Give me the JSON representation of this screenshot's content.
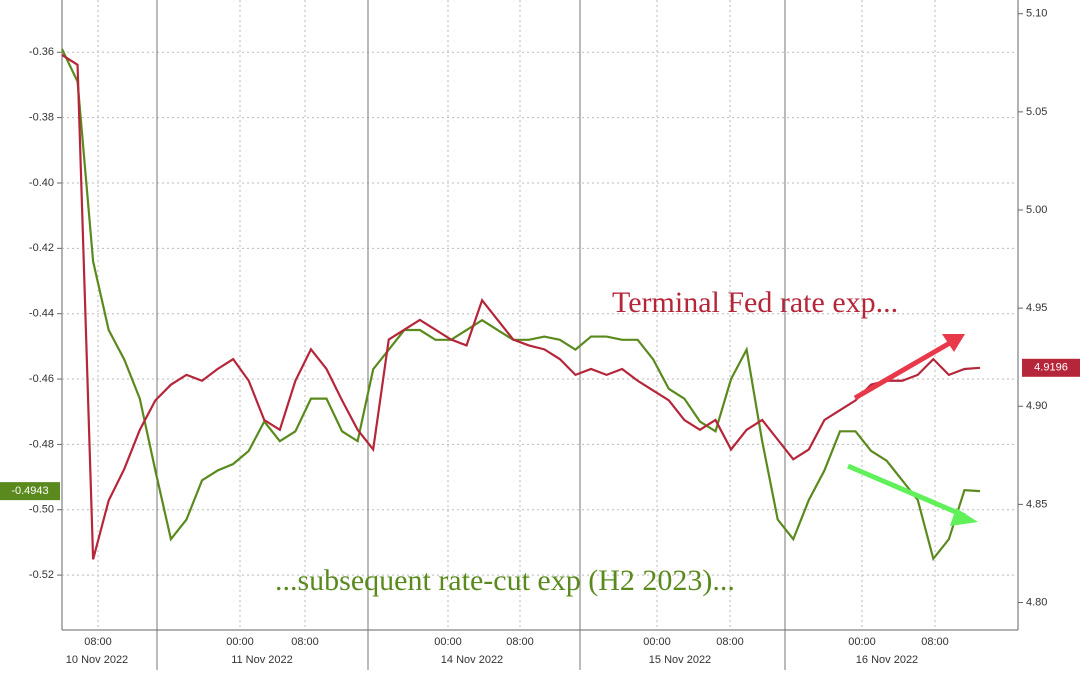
{
  "chart_data": {
    "type": "line",
    "annotations": [
      "Terminal Fed rate exp...",
      "...subsequent rate-cut exp (H2 2023)..."
    ],
    "x_axis": {
      "times": [
        "08:00",
        "00:00",
        "08:00",
        "00:00",
        "08:00",
        "00:00",
        "08:00",
        "00:00",
        "08:00"
      ],
      "dates": [
        "10 Nov 2022",
        "11 Nov 2022",
        "14 Nov 2022",
        "15 Nov 2022",
        "16 Nov 2022"
      ]
    },
    "ylim": [
      -0.344,
      -0.5368
    ],
    "yticks": [
      -0.36,
      -0.38,
      {
        "value": -0.4,
        "label": "-0.40"
      },
      -0.42,
      -0.44,
      -0.46,
      -0.48,
      {
        "value": -0.5,
        "label": "-0.50"
      },
      -0.52
    ],
    "y2lim": [
      5.107,
      4.786
    ],
    "y2ticks": [
      {
        "value": 5.1,
        "label": "5.10"
      },
      5.05,
      {
        "value": 5,
        "label": "5.00"
      },
      4.95,
      {
        "value": 4.9,
        "label": "4.90"
      },
      4.85,
      {
        "value": 4.8,
        "label": "4.80"
      }
    ],
    "grid": true,
    "series": [
      {
        "color": "#5a8a1e",
        "axis": "y",
        "last_label": "-0.4943",
        "values": [
          -0.359,
          -0.369,
          -0.424,
          -0.445,
          -0.454,
          -0.466,
          -0.488,
          -0.509,
          -0.503,
          -0.491,
          -0.488,
          -0.486,
          -0.482,
          -0.473,
          -0.479,
          -0.476,
          -0.466,
          -0.466,
          -0.476,
          -0.479,
          -0.457,
          -0.451,
          -0.445,
          -0.445,
          -0.448,
          -0.448,
          -0.445,
          -0.442,
          -0.445,
          -0.448,
          -0.448,
          -0.447,
          -0.448,
          -0.451,
          -0.447,
          -0.447,
          -0.448,
          -0.448,
          -0.454,
          -0.463,
          -0.466,
          -0.473,
          -0.476,
          -0.46,
          -0.451,
          -0.479,
          -0.503,
          -0.509,
          -0.497,
          -0.488,
          -0.476,
          -0.476,
          -0.482,
          -0.485,
          -0.491,
          -0.497,
          -0.515,
          -0.509,
          -0.494,
          -0.4943
        ]
      },
      {
        "color": "#b5263a",
        "axis": "y2",
        "last_label": "4.9196",
        "values": [
          5.079,
          5.074,
          4.822,
          4.852,
          4.868,
          4.888,
          4.903,
          4.911,
          4.916,
          4.913,
          4.919,
          4.924,
          4.913,
          4.893,
          4.888,
          4.913,
          4.929,
          4.919,
          4.903,
          4.888,
          4.878,
          4.934,
          4.939,
          4.944,
          4.939,
          4.934,
          4.931,
          4.954,
          4.944,
          4.934,
          4.931,
          4.929,
          4.924,
          4.916,
          4.919,
          4.916,
          4.919,
          4.913,
          4.908,
          4.903,
          4.893,
          4.888,
          4.893,
          4.878,
          4.888,
          4.893,
          4.883,
          4.873,
          4.878,
          4.893,
          4.898,
          4.903,
          4.911,
          4.913,
          4.913,
          4.916,
          4.924,
          4.916,
          4.919,
          4.9196
        ]
      }
    ]
  }
}
